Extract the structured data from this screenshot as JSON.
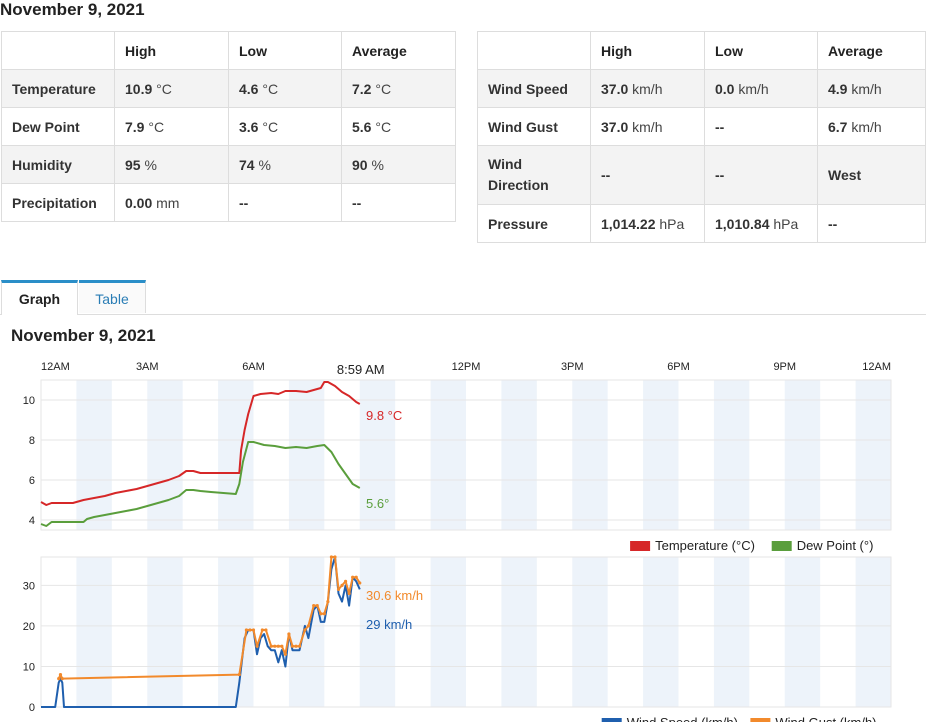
{
  "date_heading": "November 9, 2021",
  "left_table": {
    "headers": [
      "",
      "High",
      "Low",
      "Average"
    ],
    "rows": [
      {
        "label": "Temperature",
        "high": "10.9",
        "high_unit": "°C",
        "low": "4.6",
        "low_unit": "°C",
        "avg": "7.2",
        "avg_unit": "°C"
      },
      {
        "label": "Dew Point",
        "high": "7.9",
        "high_unit": "°C",
        "low": "3.6",
        "low_unit": "°C",
        "avg": "5.6",
        "avg_unit": "°C"
      },
      {
        "label": "Humidity",
        "high": "95",
        "high_unit": "%",
        "low": "74",
        "low_unit": "%",
        "avg": "90",
        "avg_unit": "%"
      },
      {
        "label": "Precipitation",
        "high": "0.00",
        "high_unit": "mm",
        "low": "--",
        "low_unit": "",
        "avg": "--",
        "avg_unit": ""
      }
    ]
  },
  "right_table": {
    "headers": [
      "",
      "High",
      "Low",
      "Average"
    ],
    "rows": [
      {
        "label": "Wind Speed",
        "high": "37.0",
        "high_unit": "km/h",
        "low": "0.0",
        "low_unit": "km/h",
        "avg": "4.9",
        "avg_unit": "km/h"
      },
      {
        "label": "Wind Gust",
        "high": "37.0",
        "high_unit": "km/h",
        "low": "--",
        "low_unit": "",
        "avg": "6.7",
        "avg_unit": "km/h"
      },
      {
        "label": "Wind Direction",
        "high": "--",
        "high_unit": "",
        "low": "--",
        "low_unit": "",
        "avg": "West",
        "avg_unit": ""
      },
      {
        "label": "Pressure",
        "high": "1,014.22",
        "high_unit": "hPa",
        "low": "1,010.84",
        "low_unit": "hPa",
        "avg": "--",
        "avg_unit": ""
      }
    ]
  },
  "tabs": [
    {
      "label": "Graph",
      "active": true
    },
    {
      "label": "Table",
      "active": false
    }
  ],
  "graph_title": "November 9, 2021",
  "colors": {
    "temperature": "#d62728",
    "dew_point": "#5a9e3c",
    "wind_speed": "#1f5fae",
    "wind_gust": "#f28a2c",
    "band": "#edf3fa",
    "grid": "#e6e6e6",
    "tab_accent": "#2a8ec8"
  },
  "chart_data": [
    {
      "type": "line",
      "x_ticks": [
        "12AM",
        "3AM",
        "6AM",
        "9AM",
        "12PM",
        "3PM",
        "6PM",
        "9PM",
        "12AM"
      ],
      "cursor_time": "8:59 AM",
      "ylim": [
        3.5,
        11
      ],
      "y_ticks": [
        4,
        6,
        8,
        10
      ],
      "grid": true,
      "legend_position": "bottom-right",
      "series": [
        {
          "name": "Temperature (°C)",
          "color": "#d62728",
          "end_label": "9.8 °C",
          "points": [
            [
              0,
              4.9
            ],
            [
              0.15,
              4.75
            ],
            [
              0.3,
              4.85
            ],
            [
              0.6,
              4.85
            ],
            [
              0.9,
              4.85
            ],
            [
              1.2,
              5.0
            ],
            [
              1.5,
              5.1
            ],
            [
              1.8,
              5.2
            ],
            [
              2.1,
              5.35
            ],
            [
              2.4,
              5.45
            ],
            [
              2.7,
              5.55
            ],
            [
              3.0,
              5.7
            ],
            [
              3.3,
              5.85
            ],
            [
              3.6,
              6.0
            ],
            [
              3.9,
              6.2
            ],
            [
              4.1,
              6.45
            ],
            [
              4.3,
              6.45
            ],
            [
              4.5,
              6.35
            ],
            [
              4.8,
              6.35
            ],
            [
              5.6,
              6.35
            ],
            [
              5.65,
              7.5
            ],
            [
              5.75,
              8.5
            ],
            [
              5.85,
              9.3
            ],
            [
              6.0,
              10.2
            ],
            [
              6.2,
              10.3
            ],
            [
              6.5,
              10.35
            ],
            [
              6.7,
              10.3
            ],
            [
              6.9,
              10.45
            ],
            [
              7.2,
              10.45
            ],
            [
              7.5,
              10.4
            ],
            [
              7.7,
              10.5
            ],
            [
              7.9,
              10.6
            ],
            [
              8.0,
              10.9
            ],
            [
              8.1,
              10.9
            ],
            [
              8.3,
              10.7
            ],
            [
              8.5,
              10.4
            ],
            [
              8.7,
              10.2
            ],
            [
              8.9,
              9.9
            ],
            [
              9.0,
              9.8
            ]
          ]
        },
        {
          "name": "Dew Point (°)",
          "color": "#5a9e3c",
          "end_label": "5.6°",
          "points": [
            [
              0,
              3.8
            ],
            [
              0.15,
              3.7
            ],
            [
              0.3,
              3.9
            ],
            [
              0.6,
              3.9
            ],
            [
              1.2,
              3.9
            ],
            [
              1.3,
              4.05
            ],
            [
              1.5,
              4.15
            ],
            [
              1.8,
              4.25
            ],
            [
              2.1,
              4.35
            ],
            [
              2.4,
              4.45
            ],
            [
              2.7,
              4.55
            ],
            [
              3.0,
              4.7
            ],
            [
              3.3,
              4.85
            ],
            [
              3.6,
              5.0
            ],
            [
              3.9,
              5.2
            ],
            [
              4.1,
              5.5
            ],
            [
              4.3,
              5.5
            ],
            [
              4.5,
              5.45
            ],
            [
              4.8,
              5.4
            ],
            [
              5.5,
              5.3
            ],
            [
              5.6,
              5.8
            ],
            [
              5.7,
              6.9
            ],
            [
              5.85,
              7.9
            ],
            [
              6.0,
              7.9
            ],
            [
              6.3,
              7.75
            ],
            [
              6.6,
              7.7
            ],
            [
              6.9,
              7.6
            ],
            [
              7.2,
              7.65
            ],
            [
              7.5,
              7.6
            ],
            [
              7.8,
              7.7
            ],
            [
              8.0,
              7.75
            ],
            [
              8.2,
              7.4
            ],
            [
              8.4,
              6.8
            ],
            [
              8.6,
              6.3
            ],
            [
              8.8,
              5.8
            ],
            [
              9.0,
              5.6
            ]
          ]
        }
      ]
    },
    {
      "type": "line",
      "x_ticks": [
        "12AM",
        "3AM",
        "6AM",
        "9AM",
        "12PM",
        "3PM",
        "6PM",
        "9PM",
        "12AM"
      ],
      "ylim": [
        0,
        37
      ],
      "y_ticks": [
        0,
        10,
        20,
        30
      ],
      "grid": true,
      "legend_position": "bottom-right",
      "series": [
        {
          "name": "Wind Speed (km/h)",
          "color": "#1f5fae",
          "end_label": "29 km/h",
          "points": [
            [
              0,
              0
            ],
            [
              0.4,
              0
            ],
            [
              0.5,
              6
            ],
            [
              0.55,
              7
            ],
            [
              0.6,
              6
            ],
            [
              0.65,
              0
            ],
            [
              5.5,
              0
            ],
            [
              5.6,
              6
            ],
            [
              5.75,
              17
            ],
            [
              5.85,
              19
            ],
            [
              6.0,
              19
            ],
            [
              6.1,
              13
            ],
            [
              6.2,
              17
            ],
            [
              6.3,
              18
            ],
            [
              6.4,
              15
            ],
            [
              6.5,
              14
            ],
            [
              6.6,
              14
            ],
            [
              6.7,
              11
            ],
            [
              6.8,
              14
            ],
            [
              6.9,
              10
            ],
            [
              7.0,
              18
            ],
            [
              7.1,
              14
            ],
            [
              7.2,
              14
            ],
            [
              7.3,
              14
            ],
            [
              7.45,
              20
            ],
            [
              7.55,
              17
            ],
            [
              7.7,
              24
            ],
            [
              7.8,
              25
            ],
            [
              7.9,
              21
            ],
            [
              8.0,
              21
            ],
            [
              8.1,
              26
            ],
            [
              8.2,
              34
            ],
            [
              8.3,
              37
            ],
            [
              8.4,
              28
            ],
            [
              8.5,
              26
            ],
            [
              8.6,
              30
            ],
            [
              8.7,
              25
            ],
            [
              8.8,
              32
            ],
            [
              8.9,
              31
            ],
            [
              9.0,
              29
            ]
          ]
        },
        {
          "name": "Wind Gust (km/h)",
          "color": "#f28a2c",
          "end_label": "30.6 km/h",
          "points": [
            [
              0.5,
              7
            ],
            [
              0.55,
              8
            ],
            [
              0.6,
              7
            ],
            [
              5.6,
              8
            ],
            [
              5.8,
              19
            ],
            [
              5.9,
              19
            ],
            [
              6.0,
              19
            ],
            [
              6.1,
              15
            ],
            [
              6.25,
              19
            ],
            [
              6.35,
              19
            ],
            [
              6.5,
              15
            ],
            [
              6.6,
              15
            ],
            [
              6.7,
              15
            ],
            [
              6.8,
              15
            ],
            [
              6.9,
              13
            ],
            [
              7.0,
              18
            ],
            [
              7.1,
              15
            ],
            [
              7.2,
              15
            ],
            [
              7.3,
              15
            ],
            [
              7.45,
              19
            ],
            [
              7.55,
              20
            ],
            [
              7.7,
              25
            ],
            [
              7.8,
              25
            ],
            [
              7.9,
              23
            ],
            [
              8.0,
              23
            ],
            [
              8.1,
              26
            ],
            [
              8.2,
              37
            ],
            [
              8.3,
              37
            ],
            [
              8.4,
              29
            ],
            [
              8.5,
              30
            ],
            [
              8.6,
              31
            ],
            [
              8.7,
              28
            ],
            [
              8.8,
              32
            ],
            [
              8.9,
              32
            ],
            [
              9.0,
              30.6
            ]
          ]
        }
      ]
    }
  ]
}
